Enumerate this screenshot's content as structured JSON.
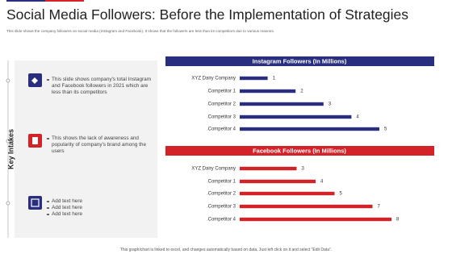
{
  "header": {
    "title": "Social Media Followers: Before the Implementation of Strategies",
    "subtitle": "This slide shows the company followers on social media (Instagram and Facebook). It shows that the followers are less than its competitors due to various reasons."
  },
  "key_intakes": {
    "label": "Key Intakes",
    "items": [
      {
        "lines": [
          "This slide shows company's total Instagram and Facebook followers in 2021 which are less than its competitors"
        ]
      },
      {
        "lines": [
          "This shows the lack of awareness and popularity of company's brand among the users"
        ]
      },
      {
        "lines": [
          "Add text here",
          "Add text here",
          "Add text here"
        ]
      }
    ]
  },
  "chart_data": [
    {
      "type": "bar",
      "orientation": "horizontal",
      "title": "Instagram Followers (In Millions)",
      "categories": [
        "XYZ Dairy Company",
        "Competitor 1",
        "Competitor 2",
        "Competitor 3",
        "Competitor 4"
      ],
      "values": [
        1,
        2,
        3,
        4,
        5
      ],
      "color": "#2a2e7e"
    },
    {
      "type": "bar",
      "orientation": "horizontal",
      "title": "Facebook Followers (In Millions)",
      "categories": [
        "XYZ Dairy Company",
        "Competitor 1",
        "Competitor 2",
        "Competitor 3",
        "Competitor 4"
      ],
      "values": [
        3,
        4,
        5,
        7,
        8
      ],
      "color": "#d32329"
    }
  ],
  "footer": "This graph/chart is linked to excel, and changes automatically based on data. Just left click on it and select \"Edit Data\"."
}
